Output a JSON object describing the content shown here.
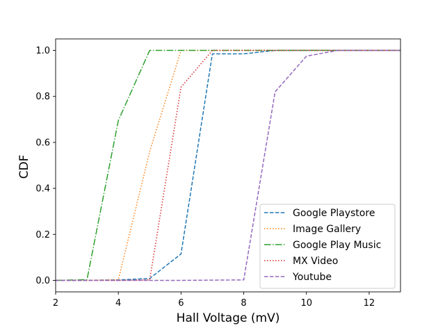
{
  "chart_data": {
    "type": "line",
    "title": "",
    "xlabel": "Hall Voltage (mV)",
    "ylabel": "CDF",
    "xlim": [
      2,
      13
    ],
    "ylim": [
      -0.05,
      1.05
    ],
    "xticks": [
      2,
      4,
      6,
      8,
      10,
      12
    ],
    "xtick_labels": [
      "2",
      "4",
      "6",
      "8",
      "10",
      "12"
    ],
    "yticks": [
      0.0,
      0.2,
      0.4,
      0.6,
      0.8,
      1.0
    ],
    "ytick_labels": [
      "0.0",
      "0.2",
      "0.4",
      "0.6",
      "0.8",
      "1.0"
    ],
    "grid": false,
    "legend_position": "lower right",
    "series": [
      {
        "name": "Google Playstore",
        "color": "#1f77b4",
        "dash": "dashed",
        "x": [
          2,
          3,
          4,
          5,
          6,
          7,
          8,
          9,
          10,
          11,
          12,
          13
        ],
        "y": [
          0.0,
          0.0,
          0.002,
          0.008,
          0.115,
          0.985,
          0.985,
          1.0,
          1.0,
          1.0,
          1.0,
          1.0
        ]
      },
      {
        "name": "Image Gallery",
        "color": "#ff7f0e",
        "dash": "dotted",
        "x": [
          2,
          3,
          4,
          5,
          6,
          7,
          8,
          9,
          10,
          11,
          12,
          13
        ],
        "y": [
          0.0,
          0.0,
          0.003,
          0.56,
          1.0,
          1.0,
          1.0,
          1.0,
          1.0,
          1.0,
          1.0,
          1.0
        ]
      },
      {
        "name": "Google Play Music",
        "color": "#2ca02c",
        "dash": "dashdot",
        "x": [
          2,
          3,
          4,
          5,
          6,
          7,
          8,
          9,
          10,
          11,
          12,
          13
        ],
        "y": [
          0.0,
          0.003,
          0.695,
          1.0,
          1.0,
          1.0,
          1.0,
          1.0,
          1.0,
          1.0,
          1.0,
          1.0
        ]
      },
      {
        "name": "MX Video",
        "color": "#d62728",
        "dash": "dotted",
        "x": [
          2,
          3,
          4,
          5,
          6,
          7,
          8,
          9,
          10,
          11,
          12,
          13
        ],
        "y": [
          0.0,
          0.0,
          0.0,
          0.002,
          0.84,
          1.0,
          1.0,
          1.0,
          1.0,
          1.0,
          1.0,
          1.0
        ]
      },
      {
        "name": "Youtube",
        "color": "#9467bd",
        "dash": "dashed",
        "x": [
          2,
          3,
          4,
          5,
          6,
          7,
          8,
          9,
          10,
          11,
          12,
          13
        ],
        "y": [
          0.0,
          0.0,
          0.0,
          0.0,
          0.0,
          0.001,
          0.002,
          0.82,
          0.975,
          1.0,
          1.0,
          1.0
        ]
      }
    ]
  }
}
